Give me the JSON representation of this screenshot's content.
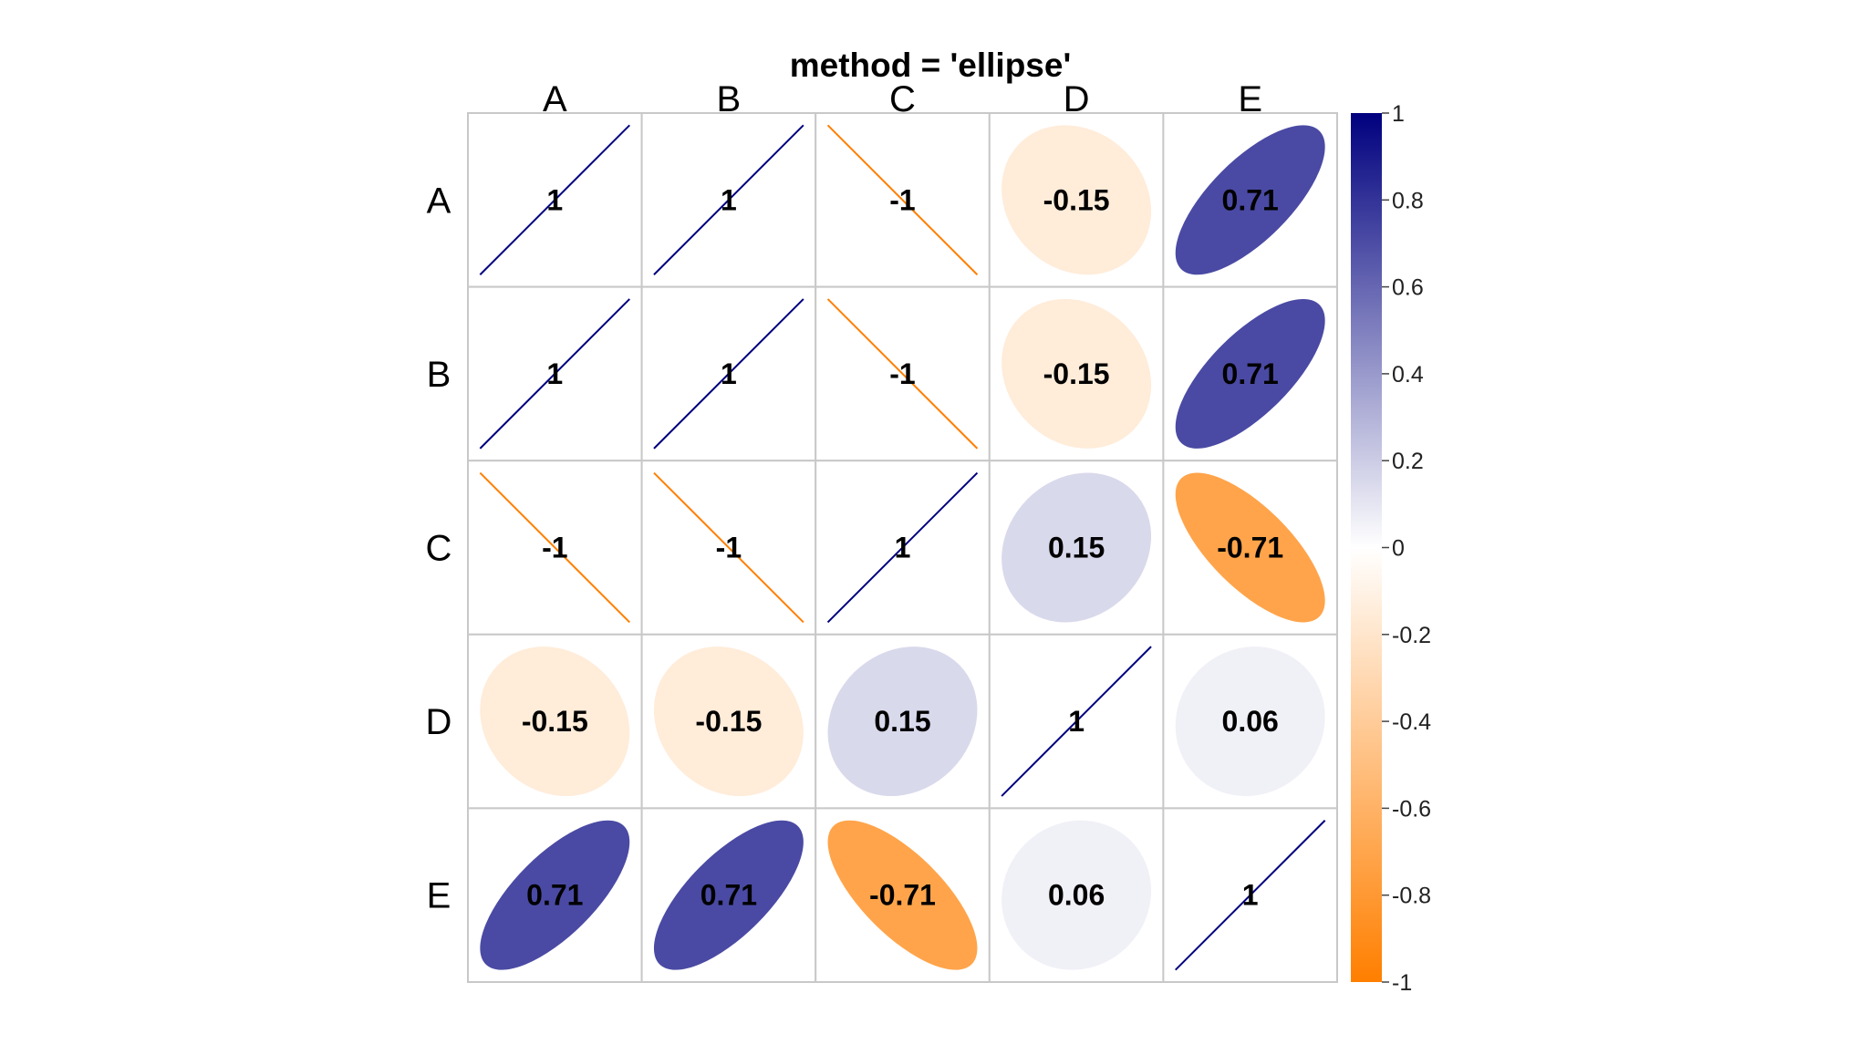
{
  "chart_data": {
    "type": "heatmap",
    "title": "method = 'ellipse'",
    "variables": [
      "A",
      "B",
      "C",
      "D",
      "E"
    ],
    "matrix": [
      [
        1,
        1,
        -1,
        -0.15,
        0.71
      ],
      [
        1,
        1,
        -1,
        -0.15,
        0.71
      ],
      [
        -1,
        -1,
        1,
        0.15,
        -0.71
      ],
      [
        -0.15,
        -0.15,
        0.15,
        1,
        0.06
      ],
      [
        0.71,
        0.71,
        -0.71,
        0.06,
        1
      ]
    ],
    "labels": [
      [
        "1",
        "1",
        "-1",
        "-0.15",
        "0.71"
      ],
      [
        "1",
        "1",
        "-1",
        "-0.15",
        "0.71"
      ],
      [
        "-1",
        "-1",
        "1",
        "0.15",
        "-0.71"
      ],
      [
        "-0.15",
        "-0.15",
        "0.15",
        "1",
        "0.06"
      ],
      [
        "0.71",
        "0.71",
        "-0.71",
        "0.06",
        "1"
      ]
    ],
    "colorbar": {
      "range": [
        -1,
        1
      ],
      "ticks": [
        1,
        0.8,
        0.6,
        0.4,
        0.2,
        0,
        -0.2,
        -0.4,
        -0.6,
        -0.8,
        -1
      ],
      "tick_labels": [
        "1",
        "0.8",
        "0.6",
        "0.4",
        "0.2",
        "0",
        "-0.2",
        "-0.4",
        "-0.6",
        "-0.8",
        "-1"
      ],
      "colors": {
        "positive": "#00007F",
        "zero": "#FFFFFF",
        "negative": "#FF7F00"
      }
    },
    "grid": true,
    "legend_placement": "right"
  }
}
